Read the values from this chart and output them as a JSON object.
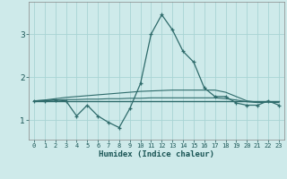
{
  "xlabel": "Humidex (Indice chaleur)",
  "x_values": [
    0,
    1,
    2,
    3,
    4,
    5,
    6,
    7,
    8,
    9,
    10,
    11,
    12,
    13,
    14,
    15,
    16,
    17,
    18,
    19,
    20,
    21,
    22,
    23
  ],
  "line1_y": [
    1.45,
    1.45,
    1.47,
    1.45,
    1.1,
    1.35,
    1.1,
    0.95,
    0.83,
    1.27,
    1.85,
    3.0,
    3.45,
    3.1,
    2.6,
    2.35,
    1.75,
    1.55,
    1.55,
    1.4,
    1.35,
    1.35,
    1.45,
    1.35
  ],
  "line2_y": [
    1.45,
    1.45,
    1.45,
    1.45,
    1.45,
    1.45,
    1.45,
    1.45,
    1.45,
    1.45,
    1.45,
    1.45,
    1.45,
    1.45,
    1.45,
    1.45,
    1.45,
    1.45,
    1.45,
    1.45,
    1.45,
    1.45,
    1.45,
    1.45
  ],
  "line3_y": [
    1.45,
    1.47,
    1.5,
    1.53,
    1.55,
    1.57,
    1.59,
    1.61,
    1.63,
    1.65,
    1.67,
    1.68,
    1.69,
    1.7,
    1.7,
    1.7,
    1.7,
    1.7,
    1.65,
    1.55,
    1.45,
    1.42,
    1.43,
    1.42
  ],
  "line4_y": [
    1.45,
    1.46,
    1.47,
    1.48,
    1.48,
    1.49,
    1.49,
    1.5,
    1.5,
    1.51,
    1.51,
    1.52,
    1.52,
    1.52,
    1.52,
    1.52,
    1.52,
    1.52,
    1.5,
    1.47,
    1.43,
    1.41,
    1.42,
    1.41
  ],
  "line_color": "#2e6b6b",
  "bg_color": "#ceeaea",
  "grid_color": "#a8d4d4",
  "yticks": [
    1,
    2,
    3
  ],
  "ylim": [
    0.55,
    3.75
  ],
  "xlim": [
    -0.5,
    23.5
  ]
}
